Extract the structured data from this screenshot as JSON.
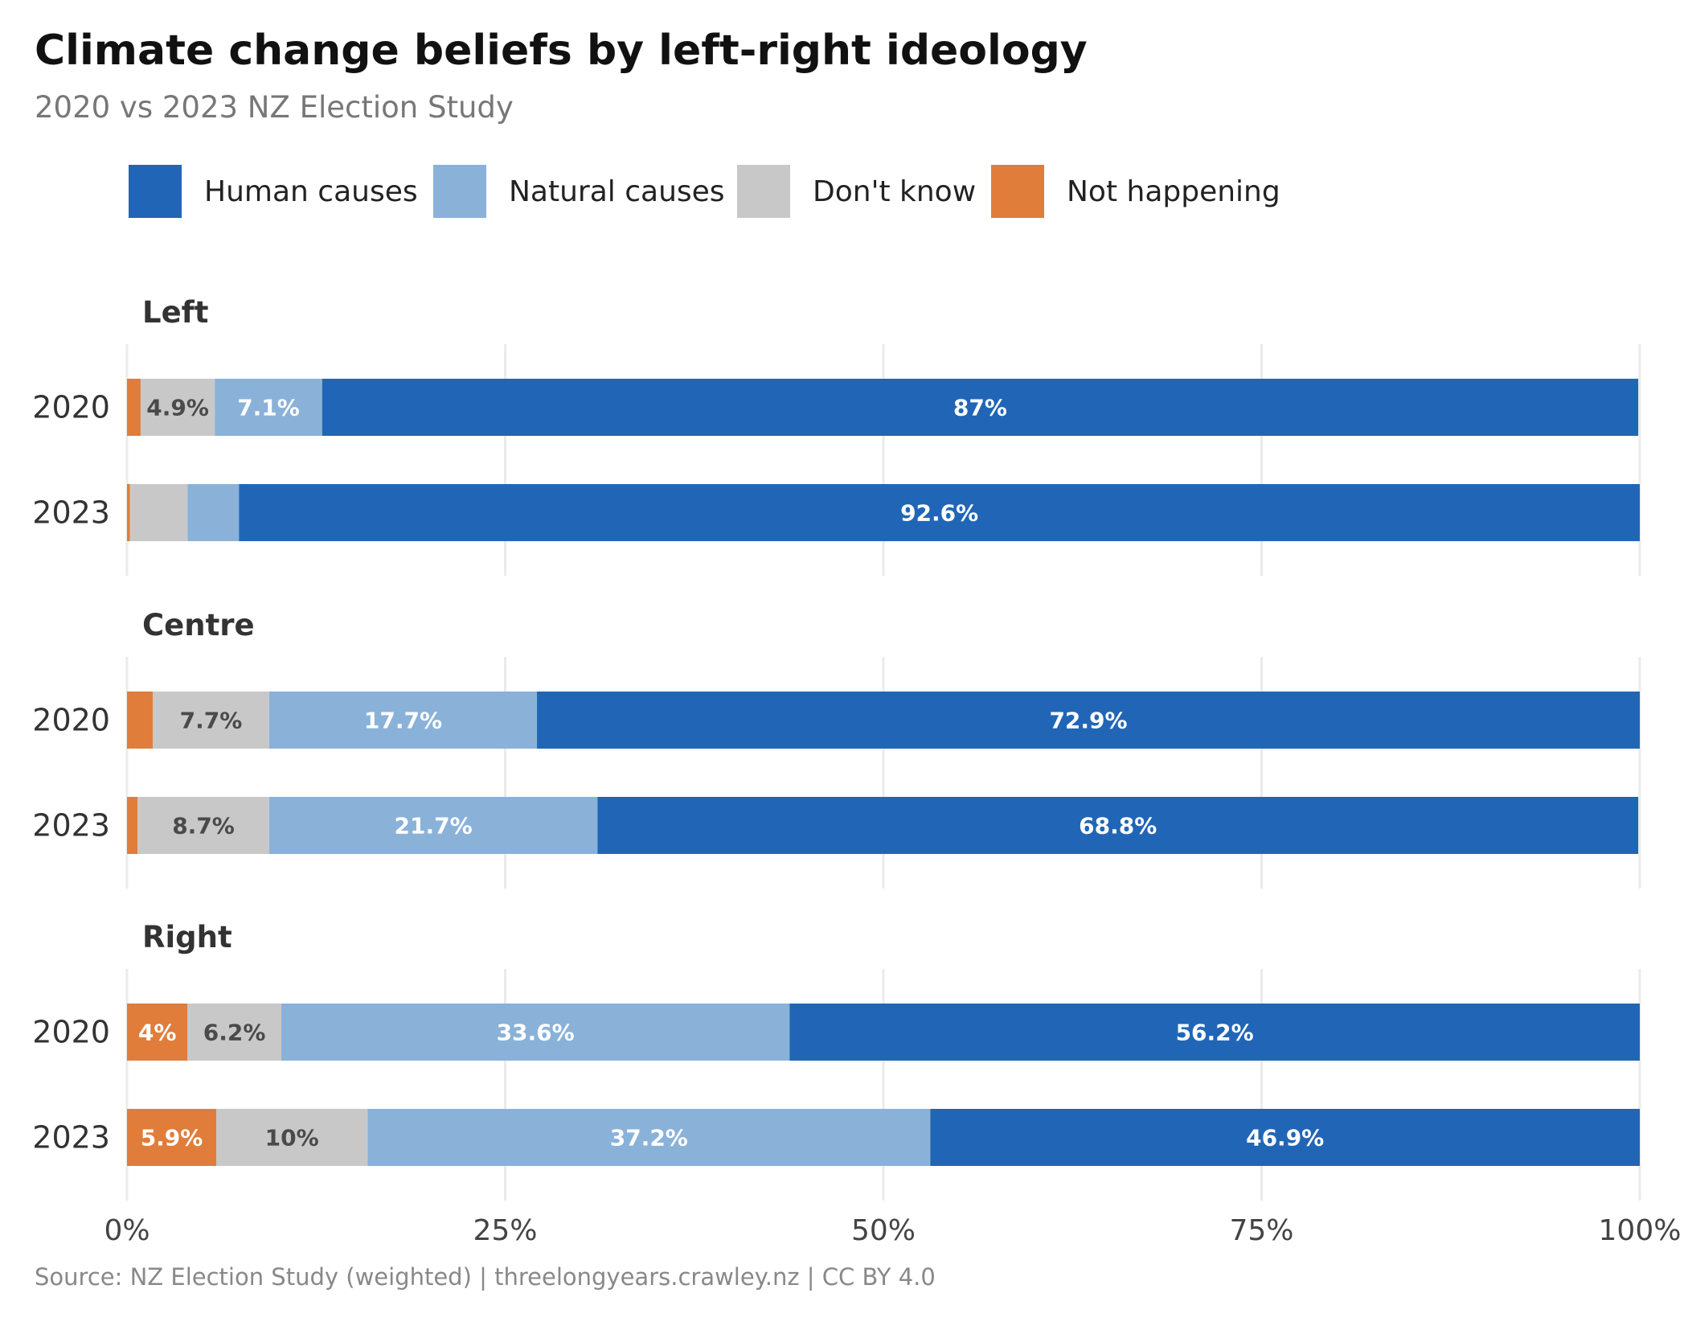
{
  "chart_data": {
    "type": "bar",
    "orientation": "horizontal",
    "stacked": true,
    "title": "Climate change beliefs by left-right ideology",
    "subtitle": "2020 vs 2023 NZ Election Study",
    "caption": "Source: NZ Election Study (weighted) | threelongyears.crawley.nz | CC BY 4.0",
    "legend_position": "top",
    "xlim": [
      0,
      100
    ],
    "x_ticks": [
      "0%",
      "25%",
      "50%",
      "75%",
      "100%"
    ],
    "grid": true,
    "series": [
      {
        "name": "Human causes",
        "color": "#2166b6"
      },
      {
        "name": "Natural causes",
        "color": "#8ab2d9"
      },
      {
        "name": "Don't know",
        "color": "#c8c8c8"
      },
      {
        "name": "Not happening",
        "color": "#e07d3a"
      }
    ],
    "stack_order": [
      "Not happening",
      "Don't know",
      "Natural causes",
      "Human causes"
    ],
    "panels": [
      {
        "name": "Left",
        "rows": [
          {
            "year": "2020",
            "values": {
              "Not happening": 0.9,
              "Don't know": 4.9,
              "Natural causes": 7.1,
              "Human causes": 87.0
            },
            "labels": {
              "Not happening": null,
              "Don't know": "4.9%",
              "Natural causes": "7.1%",
              "Human causes": "87%"
            }
          },
          {
            "year": "2023",
            "values": {
              "Not happening": 0.2,
              "Don't know": 3.8,
              "Natural causes": 3.4,
              "Human causes": 92.6
            },
            "labels": {
              "Not happening": null,
              "Don't know": null,
              "Natural causes": null,
              "Human causes": "92.6%"
            }
          }
        ]
      },
      {
        "name": "Centre",
        "rows": [
          {
            "year": "2020",
            "values": {
              "Not happening": 1.7,
              "Don't know": 7.7,
              "Natural causes": 17.7,
              "Human causes": 72.9
            },
            "labels": {
              "Not happening": null,
              "Don't know": "7.7%",
              "Natural causes": "17.7%",
              "Human causes": "72.9%"
            }
          },
          {
            "year": "2023",
            "values": {
              "Not happening": 0.7,
              "Don't know": 8.7,
              "Natural causes": 21.7,
              "Human causes": 68.8
            },
            "labels": {
              "Not happening": null,
              "Don't know": "8.7%",
              "Natural causes": "21.7%",
              "Human causes": "68.8%"
            }
          }
        ]
      },
      {
        "name": "Right",
        "rows": [
          {
            "year": "2020",
            "values": {
              "Not happening": 4.0,
              "Don't know": 6.2,
              "Natural causes": 33.6,
              "Human causes": 56.2
            },
            "labels": {
              "Not happening": "4%",
              "Don't know": "6.2%",
              "Natural causes": "33.6%",
              "Human causes": "56.2%"
            }
          },
          {
            "year": "2023",
            "values": {
              "Not happening": 5.9,
              "Don't know": 10.0,
              "Natural causes": 37.2,
              "Human causes": 46.9
            },
            "labels": {
              "Not happening": "5.9%",
              "Don't know": "10%",
              "Natural causes": "37.2%",
              "Human causes": "46.9%"
            }
          }
        ]
      }
    ]
  }
}
